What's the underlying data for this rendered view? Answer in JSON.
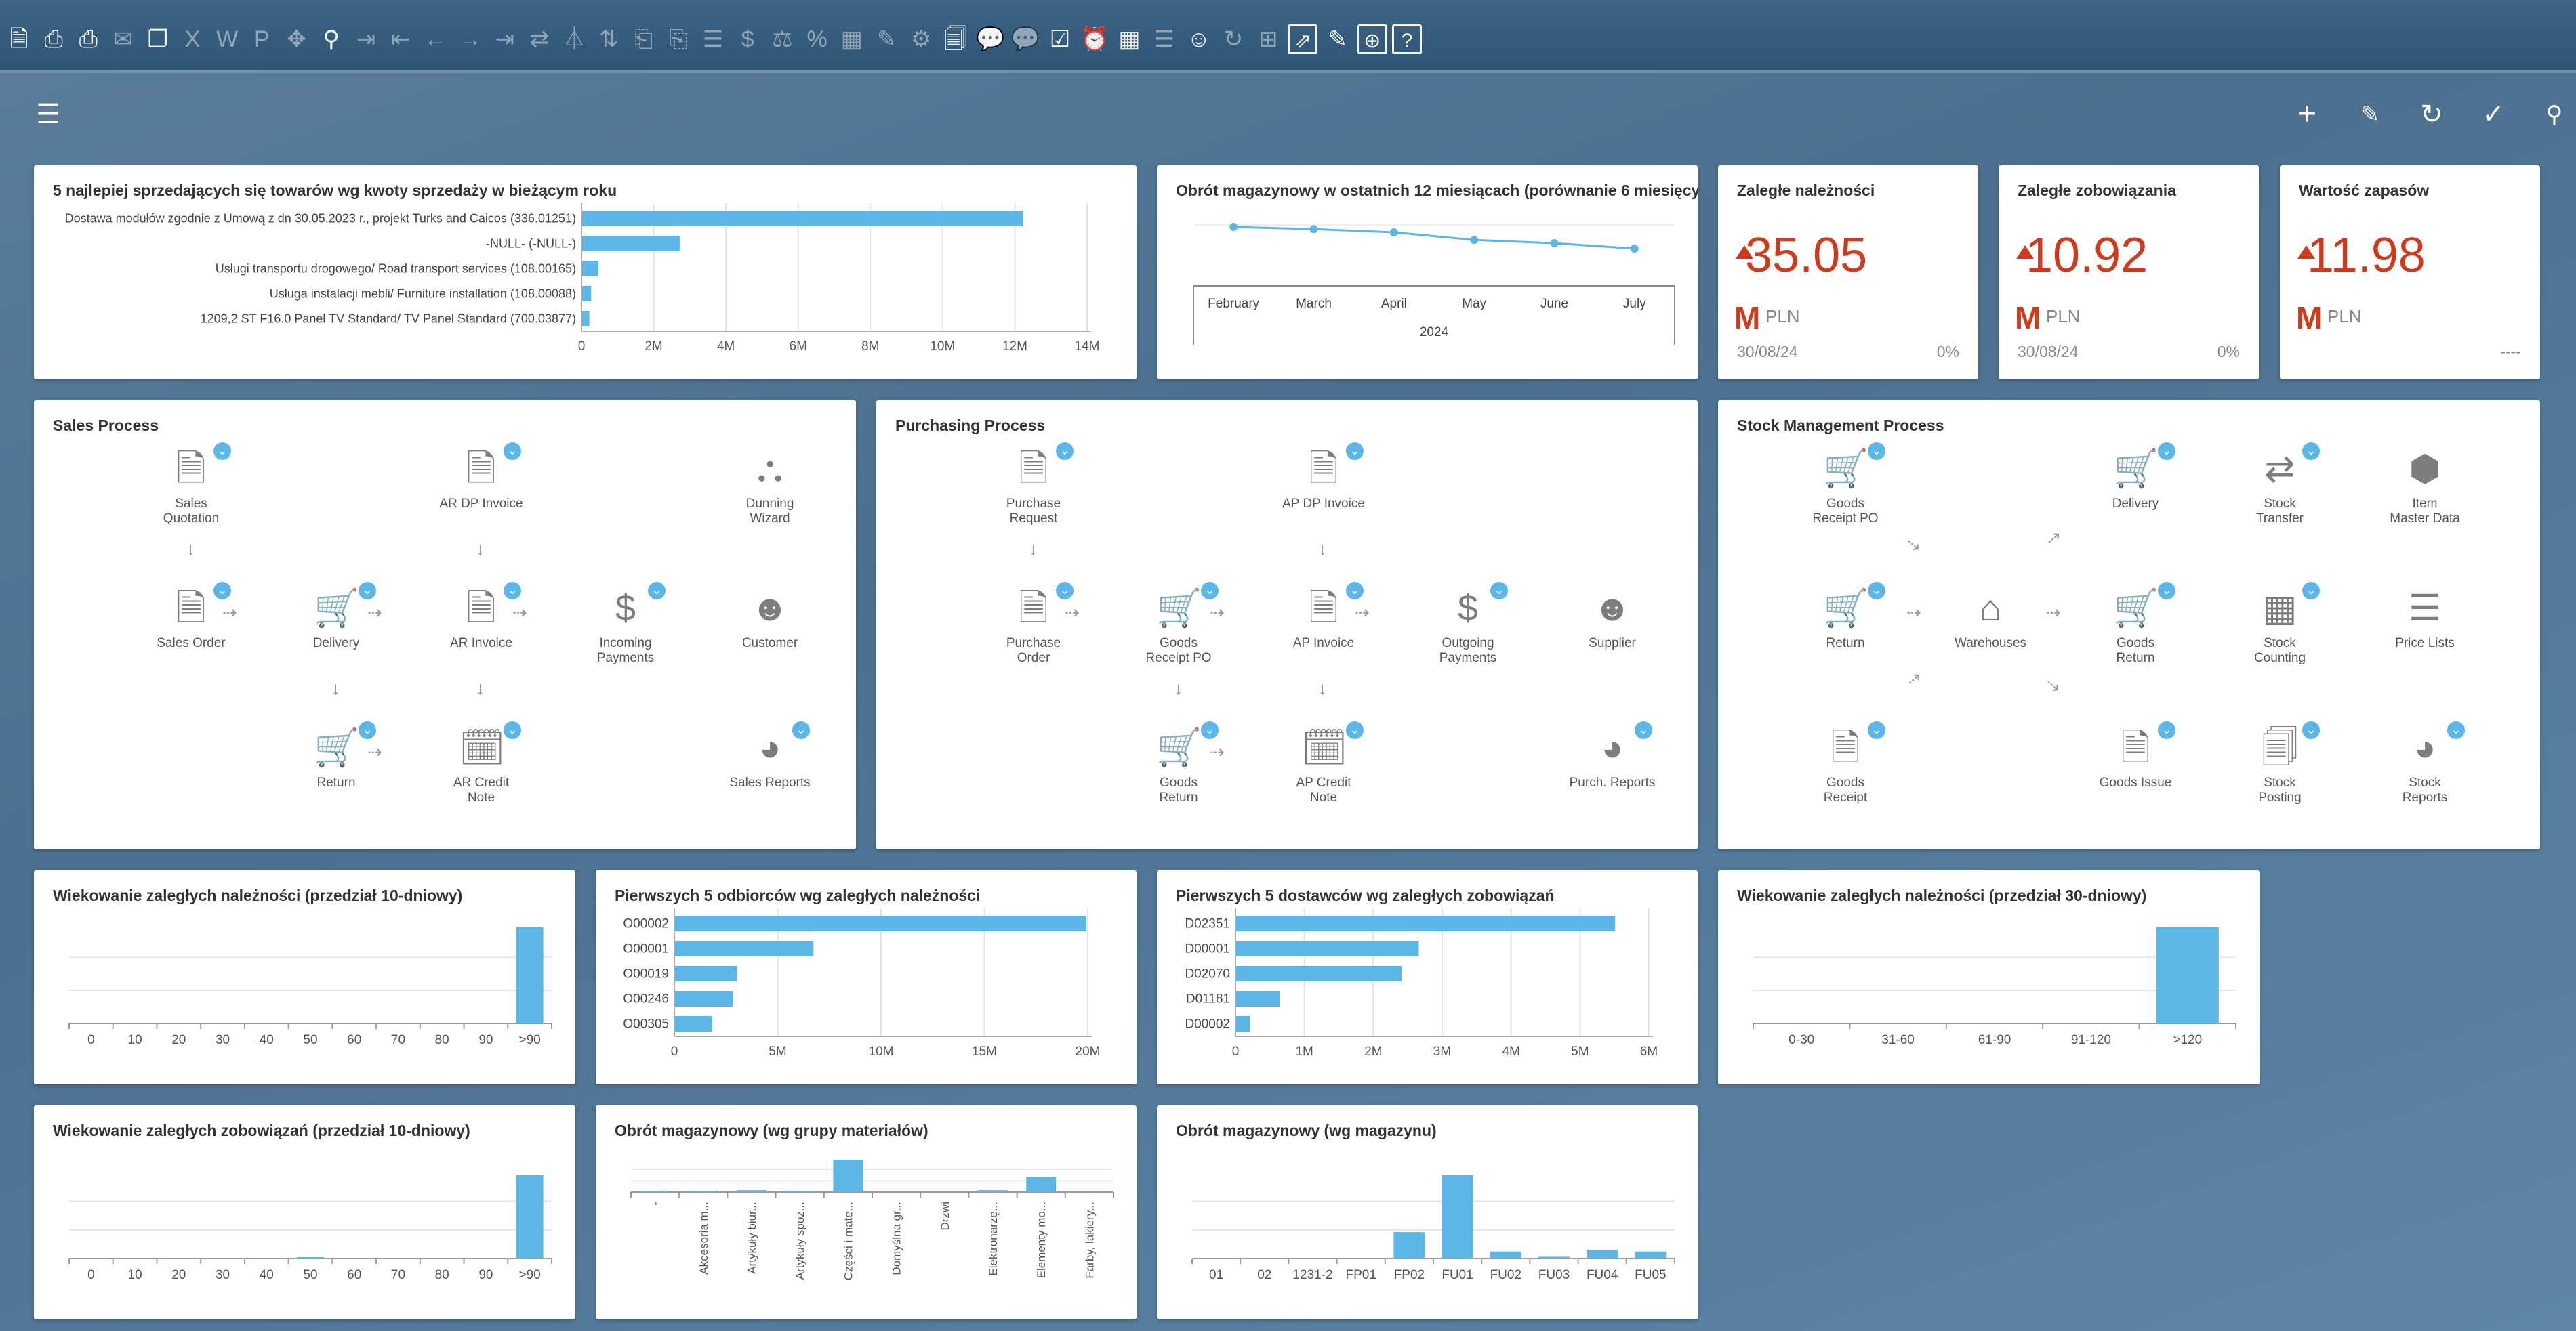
{
  "toolbar": {
    "icons": [
      "preview-icon",
      "print-icon",
      "print-preview-icon",
      "email-icon",
      "window-icon",
      "excel-icon",
      "word-icon",
      "pdf-icon",
      "move-icon",
      "binoculars-icon",
      "goto-icon",
      "first-record-icon",
      "previous-record-icon",
      "next-record-icon",
      "last-record-icon",
      "refresh-data-icon",
      "filter-icon",
      "sort-icon",
      "base-document-icon",
      "target-document-icon",
      "journal-icon",
      "payment-icon",
      "balance-icon",
      "gross-profit-icon",
      "volume-icon",
      "edit-layout-icon",
      "settings-icon",
      "form-settings-icon",
      "messages-icon",
      "chat-icon",
      "approval-icon",
      "alerts-icon",
      "calendar-icon",
      "notes-icon",
      "user-icon",
      "relationship-icon",
      "customize-icon",
      "export-icon",
      "draw-icon",
      "web-icon",
      "help-icon"
    ]
  },
  "appbar": {
    "menu_icon": "hamburger-menu-icon",
    "actions": [
      "add-icon",
      "edit-icon",
      "refresh-icon",
      "check-icon",
      "search-icon"
    ]
  },
  "top_sales": {
    "title": "5 najlepiej sprzedających się towarów wg kwoty sprzedaży w bieżącym roku",
    "chart_data": {
      "type": "bar",
      "orientation": "horizontal",
      "categories": [
        "Dostawa modułów zgodnie z Umową z dn 30.05.2023 r., projekt Turks and Caicos (336.01251)",
        "-NULL- (-NULL-)",
        "Usługi transportu drogowego/ Road transport services (108.00165)",
        "Usługa instalacji mebli/ Furniture installation (108.00088)",
        "1209,2 ST F16.0 Panel TV Standard/ TV Panel Standard (700.03877)"
      ],
      "values": [
        12200000,
        2700000,
        450000,
        250000,
        200000
      ],
      "xlim": [
        0,
        14000000
      ],
      "ticks": [
        "0",
        "2M",
        "4M",
        "6M",
        "8M",
        "10M",
        "12M",
        "14M"
      ],
      "grid": true
    }
  },
  "turnover12": {
    "title": "Obrót magazynowy w ostatnich 12 miesiącach (porównanie 6 miesięcy)",
    "chart_data": {
      "type": "line",
      "categories": [
        "February",
        "March",
        "April",
        "May",
        "June",
        "July"
      ],
      "values": [
        100,
        98,
        95,
        88,
        85,
        80
      ],
      "group_label": "2024"
    }
  },
  "kpis": [
    {
      "title": "Zaległe należności",
      "value": "35.05",
      "unit": "M",
      "currency": "PLN",
      "date": "30/08/24",
      "pct": "0%"
    },
    {
      "title": "Zaległe zobowiązania",
      "value": "10.92",
      "unit": "M",
      "currency": "PLN",
      "date": "30/08/24",
      "pct": "0%"
    },
    {
      "title": "Wartość zapasów",
      "value": "11.98",
      "unit": "M",
      "currency": "PLN",
      "date": "",
      "pct": "----"
    }
  ],
  "sales_process": {
    "title": "Sales Process",
    "nodes": [
      {
        "label": "Sales\nQuotation",
        "icon": "document-icon",
        "badge": true
      },
      {
        "label": "AR DP Invoice",
        "icon": "invoice-dollar-icon",
        "badge": true
      },
      {
        "label": "Dunning\nWizard",
        "icon": "dunning-icon",
        "badge": false
      },
      {
        "label": "Sales Order",
        "icon": "document-icon",
        "badge": true
      },
      {
        "label": "Delivery",
        "icon": "cart-icon",
        "badge": true
      },
      {
        "label": "AR Invoice",
        "icon": "invoice-icon",
        "badge": true
      },
      {
        "label": "Incoming\nPayments",
        "icon": "payment-icon",
        "badge": true
      },
      {
        "label": "Customer",
        "icon": "customer-icon",
        "badge": false
      },
      {
        "label": "Return",
        "icon": "cart-return-icon",
        "badge": true
      },
      {
        "label": "AR Credit\nNote",
        "icon": "credit-note-icon",
        "badge": true
      },
      {
        "label": "Sales Reports",
        "icon": "pie-report-icon",
        "badge": true
      }
    ]
  },
  "purchasing_process": {
    "title": "Purchasing Process",
    "nodes": [
      {
        "label": "Purchase\nRequest",
        "icon": "request-icon",
        "badge": true
      },
      {
        "label": "AP DP Invoice",
        "icon": "invoice-dollar-icon",
        "badge": true
      },
      {
        "label": "Purchase\nOrder",
        "icon": "document-icon",
        "badge": true
      },
      {
        "label": "Goods\nReceipt PO",
        "icon": "cart-icon",
        "badge": true
      },
      {
        "label": "AP Invoice",
        "icon": "invoice-icon",
        "badge": true
      },
      {
        "label": "Outgoing\nPayments",
        "icon": "payment-icon",
        "badge": true
      },
      {
        "label": "Supplier",
        "icon": "supplier-icon",
        "badge": false
      },
      {
        "label": "Goods\nReturn",
        "icon": "cart-return-icon",
        "badge": true
      },
      {
        "label": "AP Credit\nNote",
        "icon": "credit-note-icon",
        "badge": true
      },
      {
        "label": "Purch. Reports",
        "icon": "pie-report-icon",
        "badge": true
      }
    ]
  },
  "stock_process": {
    "title": "Stock Management Process",
    "nodes": [
      {
        "label": "Goods\nReceipt PO",
        "icon": "cart-icon",
        "badge": true
      },
      {
        "label": "Delivery",
        "icon": "cart-icon",
        "badge": true
      },
      {
        "label": "Stock\nTransfer",
        "icon": "transfer-icon",
        "badge": true
      },
      {
        "label": "Item\nMaster Data",
        "icon": "cube-icon",
        "badge": false
      },
      {
        "label": "Return",
        "icon": "cart-return-icon",
        "badge": true
      },
      {
        "label": "Warehouses",
        "icon": "warehouse-icon",
        "badge": false
      },
      {
        "label": "Goods\nReturn",
        "icon": "cart-return-icon",
        "badge": true
      },
      {
        "label": "Stock\nCounting",
        "icon": "calculator-icon",
        "badge": true
      },
      {
        "label": "Price Lists",
        "icon": "list-icon",
        "badge": false
      },
      {
        "label": "Goods\nReceipt",
        "icon": "document-icon",
        "badge": true
      },
      {
        "label": "Goods Issue",
        "icon": "document-icon",
        "badge": true
      },
      {
        "label": "Stock\nPosting",
        "icon": "posting-icon",
        "badge": true
      },
      {
        "label": "Stock\nReports",
        "icon": "pie-report-icon",
        "badge": true
      }
    ]
  },
  "ar_aging10": {
    "title": "Wiekowanie zaległych należności (przedział 10-dniowy)",
    "chart_data": {
      "type": "bar",
      "categories": [
        "0",
        "10",
        "20",
        "30",
        "40",
        "50",
        "60",
        "70",
        "80",
        "90",
        ">90"
      ],
      "values": [
        0,
        0,
        0,
        0,
        0,
        0,
        0,
        0,
        0,
        0,
        100
      ],
      "grid": true
    }
  },
  "top_customers": {
    "title": "Pierwszych 5 odbiorców wg zaległych należności",
    "chart_data": {
      "type": "bar",
      "orientation": "horizontal",
      "categories": [
        "O00002",
        "O00001",
        "O00019",
        "O00246",
        "O00305"
      ],
      "values": [
        19900000,
        6700000,
        3000000,
        2800000,
        1800000
      ],
      "xlim": [
        0,
        20000000
      ],
      "ticks": [
        "0",
        "5M",
        "10M",
        "15M",
        "20M"
      ],
      "grid": true
    }
  },
  "top_vendors": {
    "title": "Pierwszych 5 dostawców wg zaległych zobowiązań",
    "chart_data": {
      "type": "bar",
      "orientation": "horizontal",
      "categories": [
        "D02351",
        "D00001",
        "D02070",
        "D01181",
        "D00002"
      ],
      "values": [
        5500000,
        2650000,
        2400000,
        630000,
        200000
      ],
      "xlim": [
        0,
        6000000
      ],
      "ticks": [
        "0",
        "1M",
        "2M",
        "3M",
        "4M",
        "5M",
        "6M"
      ],
      "grid": true
    }
  },
  "ar_aging30": {
    "title": "Wiekowanie zaległych należności (przedział 30-dniowy)",
    "chart_data": {
      "type": "bar",
      "categories": [
        "0-30",
        "31-60",
        "61-90",
        "91-120",
        ">120"
      ],
      "values": [
        0,
        0,
        0,
        0,
        100
      ],
      "grid": true
    }
  },
  "ap_aging10": {
    "title": "Wiekowanie zaległych zobowiązań (przedział 10-dniowy)",
    "chart_data": {
      "type": "bar",
      "categories": [
        "0",
        "10",
        "20",
        "30",
        "40",
        "50",
        "60",
        "70",
        "80",
        "90",
        ">90"
      ],
      "values": [
        0,
        0,
        0,
        0,
        0,
        1,
        0,
        0,
        0,
        0,
        100
      ],
      "grid": true
    }
  },
  "turnover_group": {
    "title": "Obrót magazynowy (wg grupy materiałów)",
    "chart_data": {
      "type": "bar",
      "categories": [
        "-",
        "Akcesoria m...",
        "Artykuły biur...",
        "Artykuły spoż...",
        "Części i mate...",
        "Domyślna gr...",
        "Drzwi",
        "Elektronarzę...",
        "Elementy mo...",
        "Farby, lakiery..."
      ],
      "values": [
        1,
        1,
        2,
        1,
        34,
        0,
        0,
        2,
        16,
        0
      ],
      "grid": true
    }
  },
  "turnover_wh": {
    "title": "Obrót magazynowy (wg magazynu)",
    "chart_data": {
      "type": "bar",
      "categories": [
        "01",
        "02",
        "1231-2",
        "FP01",
        "FP02",
        "FU01",
        "FU02",
        "FU03",
        "FU04",
        "FU05"
      ],
      "values": [
        0,
        0,
        0,
        0,
        30,
        95,
        8,
        2,
        10,
        8
      ],
      "grid": true
    }
  }
}
